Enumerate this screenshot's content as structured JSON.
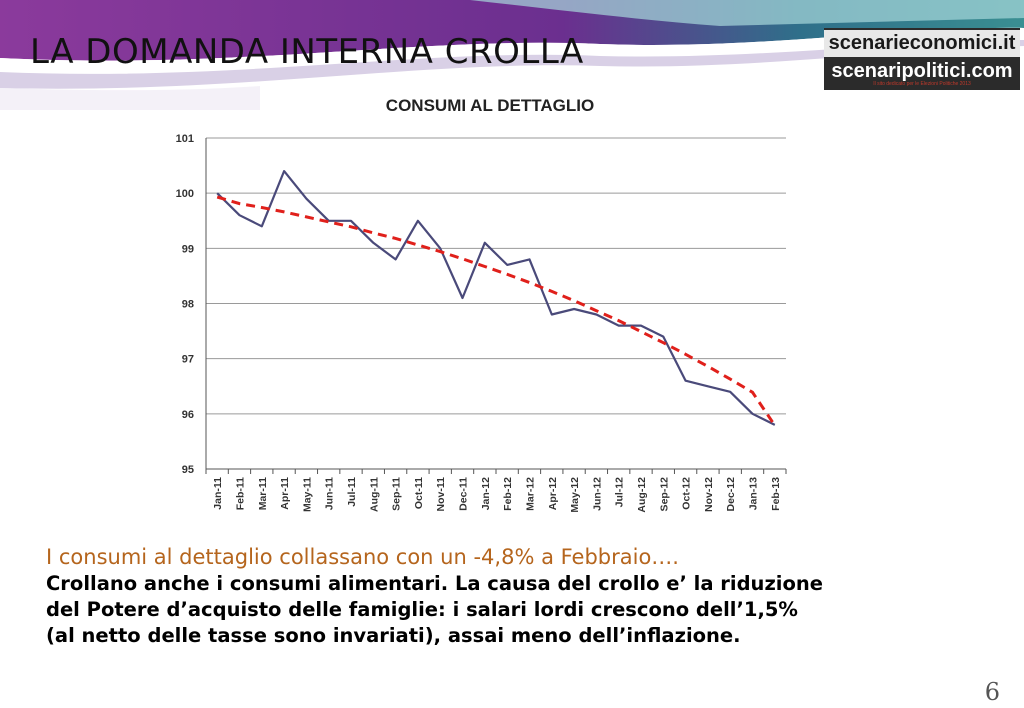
{
  "slide": {
    "title": "LA DOMANDA INTERNA CROLLA",
    "logo": {
      "line1": "scenarieconomici.it",
      "line2": "scenaripolitici.com",
      "tagline": "Il sito dedicato per le Elezioni Politiche 2013"
    },
    "note": {
      "highlight": "I consumi al dettaglio collassano con un -4,8% a Febbraio….",
      "body": "Crollano anche i consumi alimentari. La causa del crollo e’ la riduzione\ndel Potere d’acquisto delle famiglie: i salari lordi crescono dell’1,5%\n(al netto delle tasse sono invariati),  assai meno dell’inflazione."
    },
    "page_number": "6"
  },
  "colors": {
    "series_line": "#4a4a7a",
    "trend_line": "#e0201b",
    "grid": "#9a9a9a",
    "banner_purple": "#8b3a9c",
    "banner_teal": "#3a8f92"
  },
  "chart_data": {
    "type": "line",
    "title": "CONSUMI AL DETTAGLIO",
    "xlabel": "",
    "ylabel": "",
    "ylim": [
      95,
      101
    ],
    "yticks": [
      95,
      96,
      97,
      98,
      99,
      100,
      101
    ],
    "grid": true,
    "legend": "none",
    "categories": [
      "Jan-11",
      "Feb-11",
      "Mar-11",
      "Apr-11",
      "May-11",
      "Jun-11",
      "Jul-11",
      "Aug-11",
      "Sep-11",
      "Oct-11",
      "Nov-11",
      "Dec-11",
      "Jan-12",
      "Feb-12",
      "Mar-12",
      "Apr-12",
      "May-12",
      "Jun-12",
      "Jul-12",
      "Aug-12",
      "Sep-12",
      "Oct-12",
      "Nov-12",
      "Dec-12",
      "Jan-13",
      "Feb-13"
    ],
    "series": [
      {
        "values": [
          100.0,
          99.6,
          99.4,
          100.4,
          99.9,
          99.5,
          99.5,
          99.1,
          98.8,
          99.5,
          99.0,
          98.1,
          99.1,
          98.7,
          98.8,
          97.8,
          97.9,
          97.8,
          97.6,
          97.6,
          97.4,
          96.6,
          96.5,
          96.4,
          96.0,
          95.8
        ],
        "style": "solid"
      },
      {
        "values": [
          99.93,
          99.81,
          99.74,
          99.66,
          99.57,
          99.48,
          99.39,
          99.28,
          99.18,
          99.06,
          98.94,
          98.81,
          98.67,
          98.53,
          98.38,
          98.22,
          98.05,
          97.87,
          97.69,
          97.49,
          97.29,
          97.08,
          96.86,
          96.63,
          96.39,
          95.79
        ],
        "style": "dashed-trend"
      }
    ]
  }
}
